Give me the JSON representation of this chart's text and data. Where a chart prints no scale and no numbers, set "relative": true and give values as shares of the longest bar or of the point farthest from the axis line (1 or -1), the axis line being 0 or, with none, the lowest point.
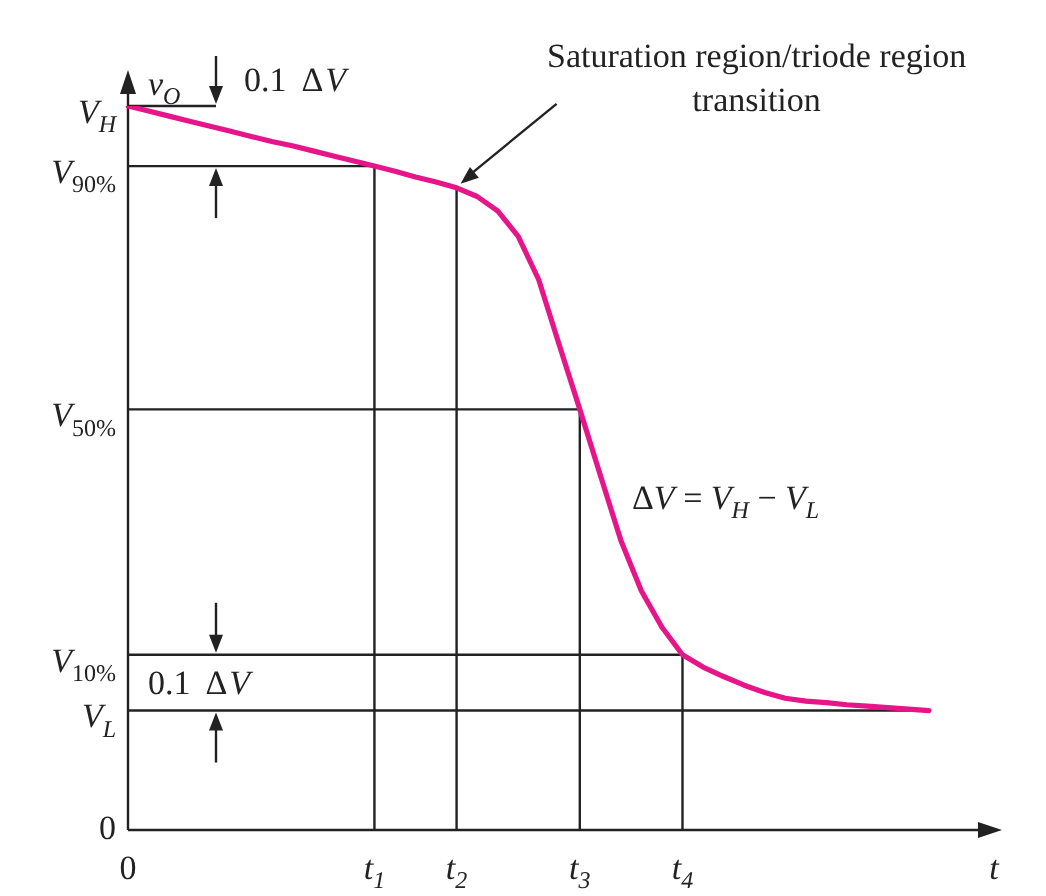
{
  "chart_data": {
    "type": "line",
    "relative": true,
    "xlabel": "t",
    "ylabel": "v$_{O}$",
    "categories": [
      "0",
      null,
      null,
      null,
      null,
      null,
      null,
      null,
      null,
      null,
      null,
      null,
      "t$_{1}$",
      null,
      null,
      null,
      "t$_{2}$",
      null,
      null,
      null,
      null,
      null,
      "t$_{3}$",
      null,
      null,
      null,
      null,
      "t$_{4}$",
      null,
      null,
      null,
      null,
      null,
      null,
      null,
      null,
      null,
      null,
      null,
      null,
      null,
      null
    ],
    "series": [
      {
        "color": "#e6168a",
        "values": [
          1.0,
          0.993,
          0.986,
          0.979,
          0.972,
          0.965,
          0.958,
          0.951,
          0.945,
          0.938,
          0.931,
          0.924,
          0.917,
          0.91,
          0.902,
          0.895,
          0.887,
          0.875,
          0.855,
          0.82,
          0.76,
          0.67,
          0.581,
          0.49,
          0.4,
          0.33,
          0.28,
          0.242,
          0.225,
          0.212,
          0.2,
          0.19,
          0.182,
          0.178,
          0.176,
          0.173,
          0.171,
          0.169,
          0.167,
          0.165,
          null,
          null
        ]
      }
    ],
    "ref_lines": [
      {
        "axis": "y",
        "value": 1.0,
        "label": "V$_{H}$"
      },
      {
        "axis": "y",
        "value": 0.917,
        "label": "V$_{90%}$"
      },
      {
        "axis": "y",
        "value": 0.581,
        "label": "V$_{50%}$"
      },
      {
        "axis": "y",
        "value": 0.242,
        "label": "V$_{10%}$"
      },
      {
        "axis": "y",
        "value": 0.165,
        "label": "V$_{L}$"
      },
      {
        "axis": "x",
        "value": "t$_{1}$"
      },
      {
        "axis": "x",
        "value": "t$_{2}$"
      },
      {
        "axis": "x",
        "value": "t$_{3}$"
      },
      {
        "axis": "x",
        "value": "t$_{4}$"
      }
    ],
    "annotations": [
      "0.1  ΔV",
      "0.1  ΔV",
      {
        "text": "Saturation region/triode region transition",
        "x": "t$_{2}$",
        "y": 0.887
      },
      "ΔV = V$_{H}$ − V$_{L}$",
      "0"
    ],
    "legend": false,
    "marker": "none",
    "line_style": "solid"
  }
}
